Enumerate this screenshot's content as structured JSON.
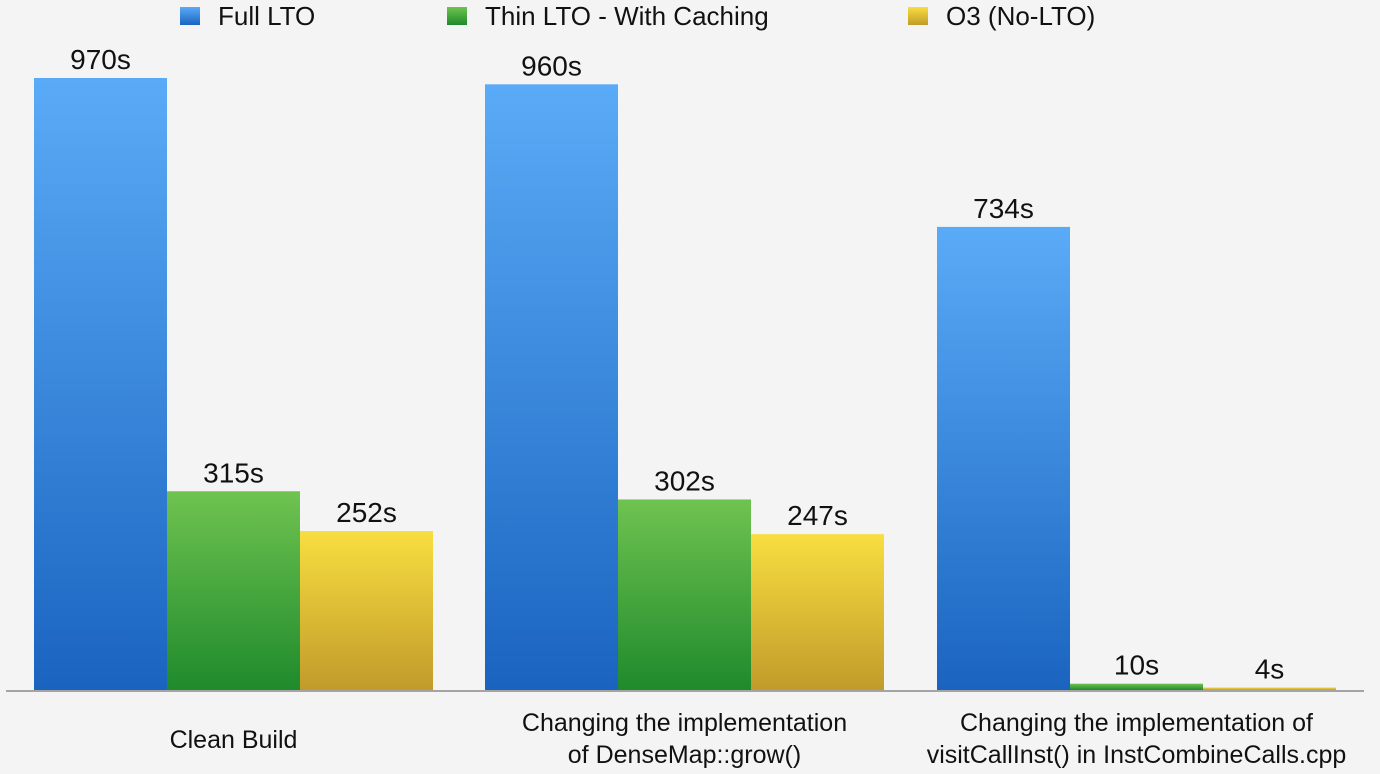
{
  "chart_data": {
    "type": "bar",
    "title": "",
    "xlabel": "",
    "ylabel": "",
    "ylim": [
      0,
      1000
    ],
    "grid": false,
    "legend_position": "top",
    "categories": [
      [
        "Clean Build"
      ],
      [
        "Changing the implementation",
        "of DenseMap::grow()"
      ],
      [
        "Changing the implementation of",
        "visitCallInst() in InstCombineCalls.cpp"
      ]
    ],
    "series": [
      {
        "name": "Full LTO",
        "values": [
          970,
          960,
          734
        ],
        "labels": [
          "970s",
          "960s",
          "734s"
        ],
        "color_top": "#5aabf7",
        "color_bottom": "#1a64c0"
      },
      {
        "name": "Thin LTO - With Caching",
        "values": [
          315,
          302,
          10
        ],
        "labels": [
          "315s",
          "302s",
          "10s"
        ],
        "color_top": "#6fc350",
        "color_bottom": "#1f8a2c"
      },
      {
        "name": "O3 (No-LTO)",
        "values": [
          252,
          247,
          4
        ],
        "labels": [
          "252s",
          "247s",
          "4s"
        ],
        "color_top": "#f8de40",
        "color_bottom": "#c19b2a"
      }
    ]
  }
}
